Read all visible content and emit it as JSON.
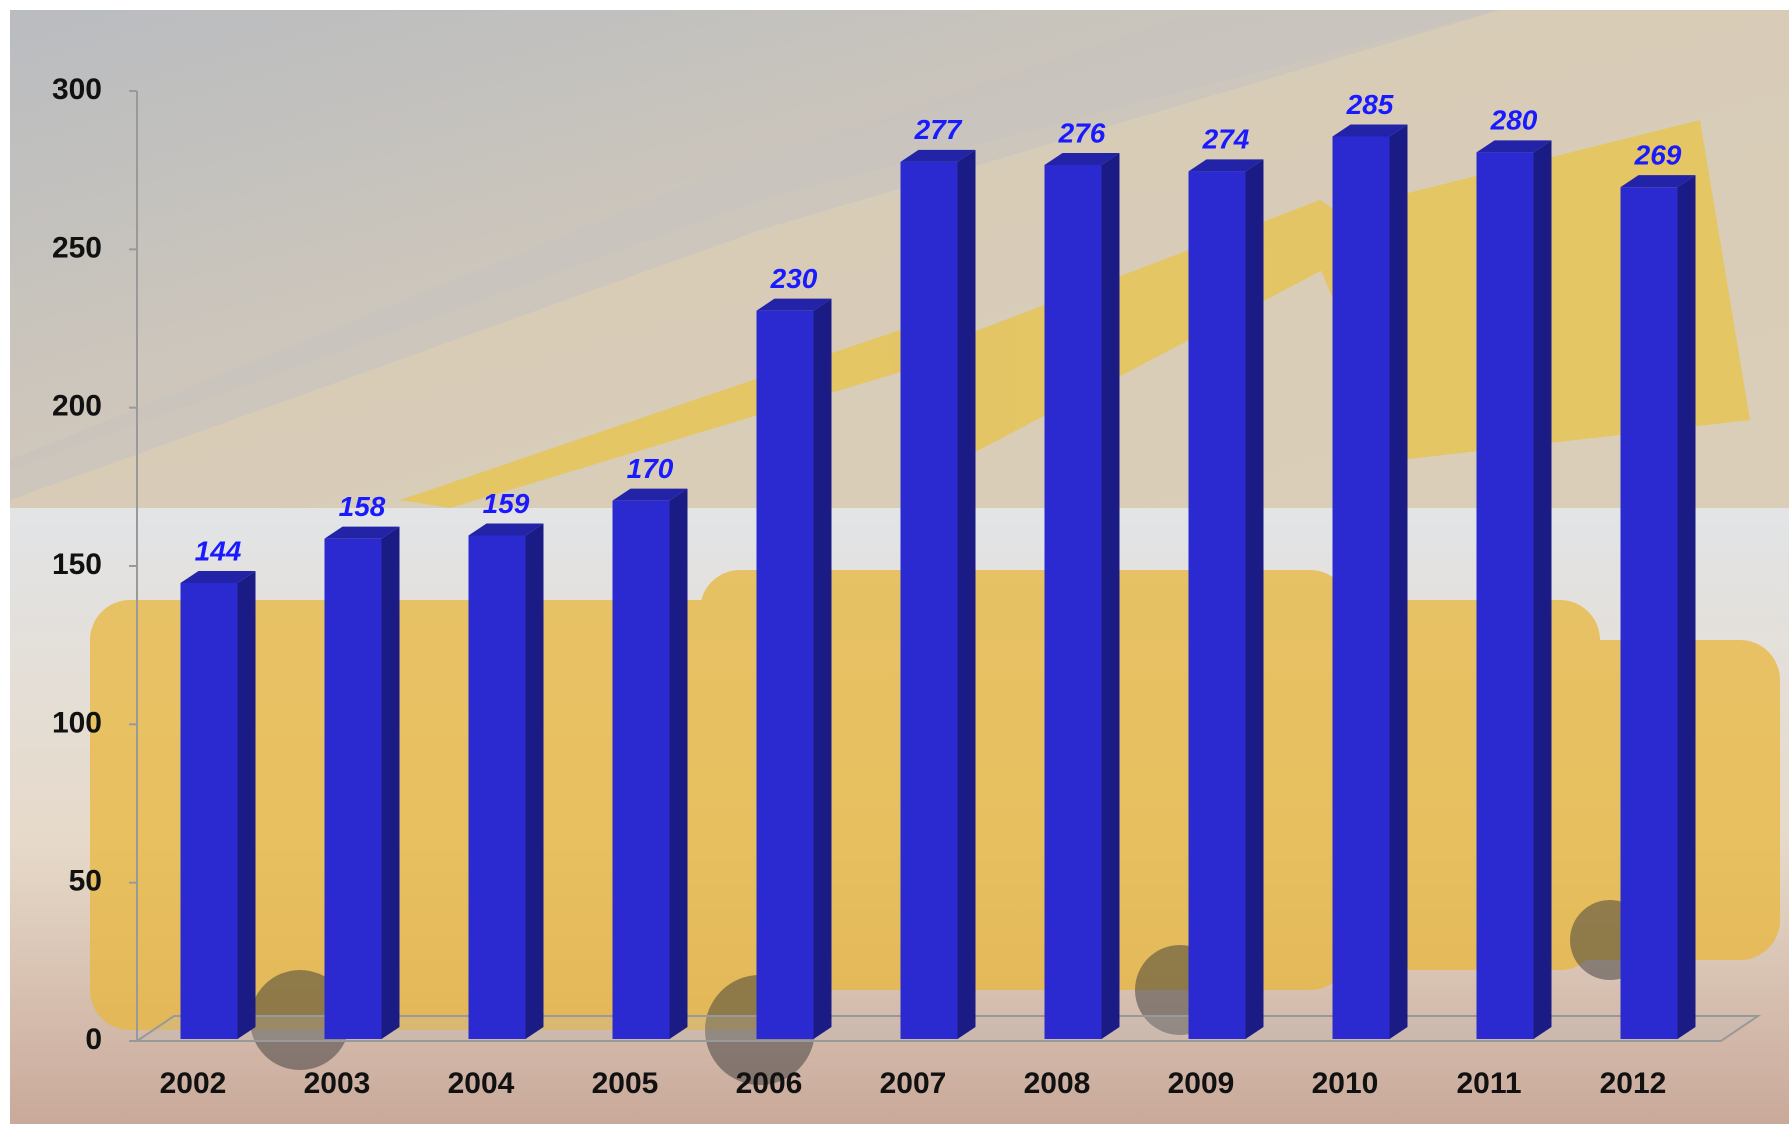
{
  "chart_data": {
    "type": "bar",
    "categories": [
      "2002",
      "2003",
      "2004",
      "2005",
      "2006",
      "2007",
      "2008",
      "2009",
      "2010",
      "2011",
      "2012"
    ],
    "values": [
      144,
      158,
      159,
      170,
      230,
      277,
      276,
      274,
      285,
      280,
      269
    ],
    "color": "#2a2ad0",
    "ylim": [
      0,
      300
    ],
    "yticks": [
      0,
      50,
      100,
      150,
      200,
      250,
      300
    ]
  }
}
